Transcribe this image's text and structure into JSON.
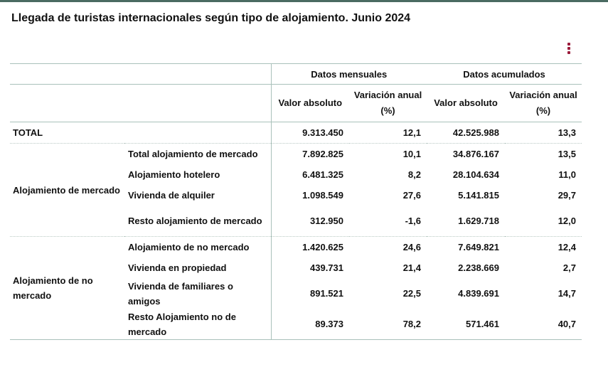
{
  "title": "Llegada de turistas internacionales según tipo de alojamiento. Junio 2024",
  "menu_icon": "kebab-menu-icon",
  "accent_color": "#9b1b3b",
  "headers": {
    "group1": "Datos mensuales",
    "group2": "Datos acumulados",
    "col1": "Valor absoluto",
    "col2": "Variación anual (%)",
    "col3": "Valor absoluto",
    "col4": "Variación anual (%)"
  },
  "total": {
    "label": "TOTAL",
    "values": [
      "9.313.450",
      "12,1",
      "42.525.988",
      "13,3"
    ]
  },
  "groups": [
    {
      "label": "Alojamiento de mercado",
      "rows": [
        {
          "label": "Total alojamiento de mercado",
          "values": [
            "7.892.825",
            "10,1",
            "34.876.167",
            "13,5"
          ]
        },
        {
          "label": "Alojamiento hotelero",
          "values": [
            "6.481.325",
            "8,2",
            "28.104.634",
            "11,0"
          ]
        },
        {
          "label": "Vivienda de alquiler",
          "values": [
            "1.098.549",
            "27,6",
            "5.141.815",
            "29,7"
          ]
        },
        {
          "label": "Resto alojamiento de mercado",
          "values": [
            "312.950",
            "-1,6",
            "1.629.718",
            "12,0"
          ]
        }
      ]
    },
    {
      "label": "Alojamiento de no mercado",
      "rows": [
        {
          "label": "Alojamiento de no mercado",
          "values": [
            "1.420.625",
            "24,6",
            "7.649.821",
            "12,4"
          ]
        },
        {
          "label": "Vivienda en propiedad",
          "values": [
            "439.731",
            "21,4",
            "2.238.669",
            "2,7"
          ]
        },
        {
          "label": "Vivienda de familiares o amigos",
          "values": [
            "891.521",
            "22,5",
            "4.839.691",
            "14,7"
          ]
        },
        {
          "label": "Resto Alojamiento no de mercado",
          "values": [
            "89.373",
            "78,2",
            "571.461",
            "40,7"
          ]
        }
      ]
    }
  ]
}
